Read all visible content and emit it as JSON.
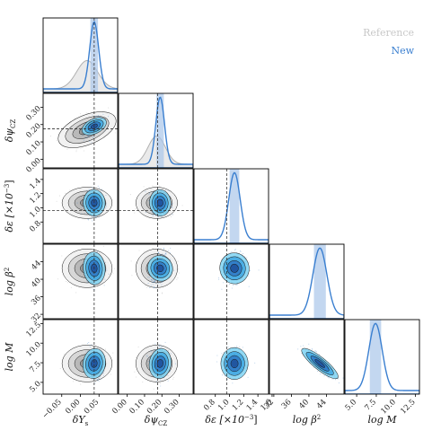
{
  "chart_data": {
    "type": "corner",
    "title": "",
    "legend": {
      "placement": "top-right",
      "entries": [
        {
          "label": "Reference",
          "color": "#c8c8c8"
        },
        {
          "label": "New",
          "color": "#3a7fd0"
        }
      ]
    },
    "colors": {
      "reference": "#b0b0b0",
      "reference_fill": "#dcdcdc",
      "new": "#3a7fd0",
      "new_fill": "#a9c6ea",
      "contour_fill": [
        "#1f4f99",
        "#2f78c4",
        "#3fa6e0",
        "#7fd3f3"
      ]
    },
    "truth_lines": "dashed",
    "parameters": [
      {
        "label_math": [
          "δY",
          "s"
        ],
        "range": [
          -0.1,
          0.1
        ],
        "ticks": [
          -0.05,
          0.0,
          0.05
        ],
        "tick_labels": [
          "−0.05",
          "0.00",
          "0.05"
        ],
        "truth": 0.037,
        "new": {
          "mean": 0.037,
          "sd": 0.012
        },
        "ref": {
          "mean": 0.018,
          "sd": 0.028
        }
      },
      {
        "label_math": [
          "δψ",
          "CZ"
        ],
        "range": [
          -0.05,
          0.38
        ],
        "ticks": [
          0.0,
          0.1,
          0.2,
          0.3
        ],
        "tick_labels": [
          "0.00",
          "0.10",
          "0.20",
          "0.30"
        ],
        "truth": 0.175,
        "new": {
          "mean": 0.19,
          "sd": 0.025
        },
        "ref": {
          "mean": 0.17,
          "sd": 0.05
        }
      },
      {
        "label_math": [
          "δε [×10",
          "−3",
          "]"
        ],
        "range": [
          0.5,
          1.55
        ],
        "ticks": [
          0.8,
          1.0,
          1.2,
          1.4,
          1.6
        ],
        "tick_labels": [
          "0.8",
          "1.0",
          "1.2",
          "1.4",
          "1.6"
        ],
        "truth": 0.96,
        "new": {
          "mean": 1.07,
          "sd": 0.08
        }
      },
      {
        "label_math": [
          "log β",
          "2"
        ],
        "range": [
          31,
          48
        ],
        "ticks": [
          32,
          36,
          40,
          44
        ],
        "tick_labels": [
          "32",
          "36",
          "40",
          "44"
        ],
        "truth": null,
        "new": {
          "mean": 42.5,
          "sd": 1.6
        }
      },
      {
        "label_math": [
          "log M",
          ""
        ],
        "range": [
          3.5,
          13.0
        ],
        "ticks": [
          5.0,
          7.5,
          10.0,
          12.5
        ],
        "tick_labels": [
          "5.0",
          "7.5",
          "10.0",
          "12.5"
        ],
        "truth": null,
        "new": {
          "mean": 7.4,
          "sd": 0.85
        }
      }
    ],
    "pairs_new_correlation": {
      "1-0": 0.5,
      "2-0": 0.05,
      "2-1": 0.05,
      "3-0": 0.05,
      "3-1": 0.4,
      "3-2": 0.15,
      "4-0": -0.1,
      "4-1": -0.1,
      "4-2": 0.0,
      "4-3": -0.85
    },
    "pairs_reference": {
      "1-0": 0.5,
      "2-0": 0.0,
      "2-1": 0.0,
      "3-0": 0.0,
      "3-1": 0.0,
      "4-0": -0.05,
      "4-1": -0.05
    }
  }
}
